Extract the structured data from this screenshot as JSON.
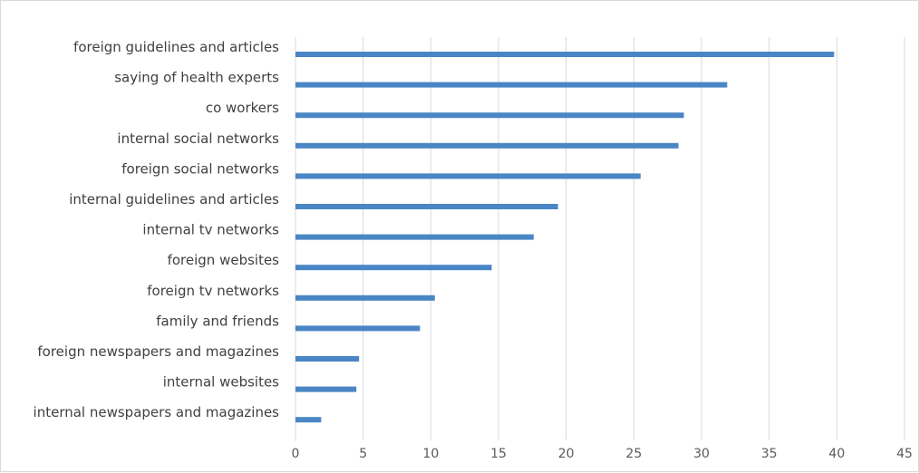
{
  "chart_data": {
    "type": "bar",
    "orientation": "horizontal",
    "categories": [
      "foreign guidelines and articles",
      "saying of health experts",
      "co workers",
      "internal social networks",
      "foreign social networks",
      "internal guidelines and articles",
      "internal tv networks",
      "foreign websites",
      "foreign tv networks",
      "family and friends",
      "foreign newspapers and magazines",
      "internal websites",
      "internal newspapers and magazines"
    ],
    "values": [
      39.8,
      31.9,
      28.7,
      28.3,
      25.5,
      19.4,
      17.6,
      14.5,
      10.3,
      9.2,
      4.7,
      4.5,
      1.9
    ],
    "xticks": [
      "0",
      "5",
      "10",
      "15",
      "20",
      "25",
      "30",
      "35",
      "40",
      "45"
    ],
    "xlim": [
      0,
      45
    ],
    "grid": true,
    "bar_color": "#4a86c5",
    "grid_color": "#d9d9d9"
  }
}
